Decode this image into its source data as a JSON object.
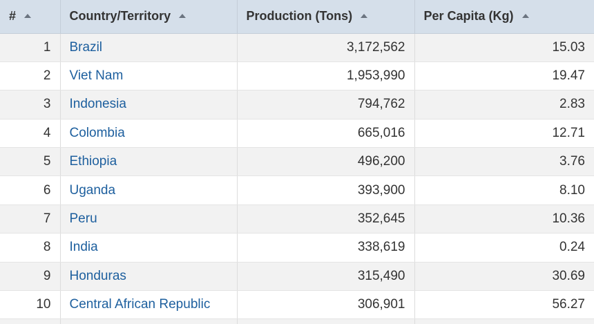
{
  "table": {
    "headers": {
      "rank": "#",
      "country": "Country/Territory",
      "production": "Production (Tons)",
      "per_capita": "Per Capita (Kg)"
    },
    "rows": [
      {
        "rank": "1",
        "country": "Brazil",
        "production": "3,172,562",
        "per_capita": "15.03"
      },
      {
        "rank": "2",
        "country": "Viet Nam",
        "production": "1,953,990",
        "per_capita": "19.47"
      },
      {
        "rank": "3",
        "country": "Indonesia",
        "production": "794,762",
        "per_capita": "2.83"
      },
      {
        "rank": "4",
        "country": "Colombia",
        "production": "665,016",
        "per_capita": "12.71"
      },
      {
        "rank": "5",
        "country": "Ethiopia",
        "production": "496,200",
        "per_capita": "3.76"
      },
      {
        "rank": "6",
        "country": "Uganda",
        "production": "393,900",
        "per_capita": "8.10"
      },
      {
        "rank": "7",
        "country": "Peru",
        "production": "352,645",
        "per_capita": "10.36"
      },
      {
        "rank": "8",
        "country": "India",
        "production": "338,619",
        "per_capita": "0.24"
      },
      {
        "rank": "9",
        "country": "Honduras",
        "production": "315,490",
        "per_capita": "30.69"
      },
      {
        "rank": "10",
        "country": "Central African Republic",
        "production": "306,901",
        "per_capita": "56.27"
      }
    ]
  },
  "colors": {
    "header_bg": "#d5dfea",
    "link": "#1d5f9e",
    "row_alt": "#f2f2f2"
  },
  "icons": {
    "sort": "sort-ascending-icon"
  }
}
